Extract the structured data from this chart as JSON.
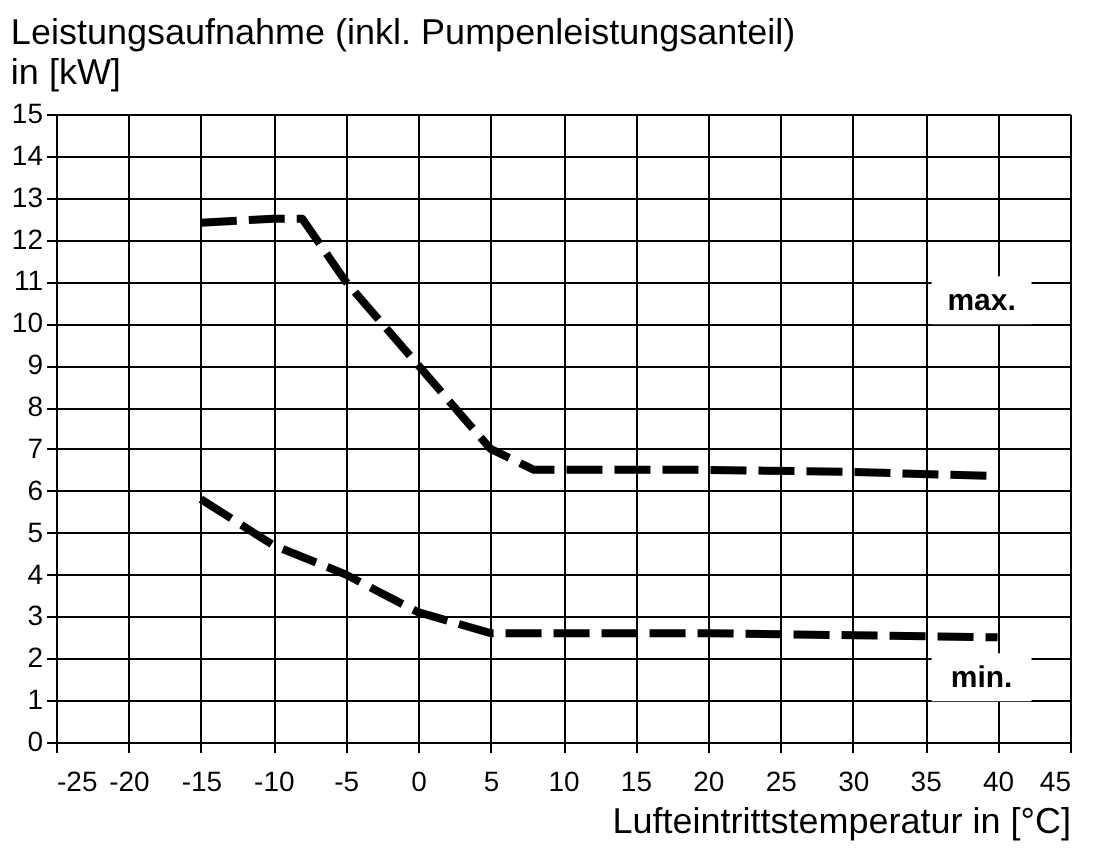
{
  "chart_data": {
    "type": "line",
    "title": "Leistungsaufnahme (inkl. Pumpenleistungsanteil) in [kW]",
    "xlabel": "Lufteintrittstemperatur in [°C]",
    "series": [
      {
        "color": "#000000",
        "x": [
          -15,
          -10,
          -8,
          -5,
          0,
          5,
          8,
          10,
          20,
          30,
          40
        ],
        "values": [
          12.4,
          12.5,
          12.5,
          11,
          9,
          7,
          6.5,
          6.5,
          6.5,
          6.45,
          6.35
        ]
      },
      {
        "color": "#000000",
        "x": [
          -15,
          -10,
          -5,
          0,
          5,
          10,
          20,
          30,
          40
        ],
        "values": [
          5.8,
          4.7,
          4,
          3.1,
          2.6,
          2.6,
          2.6,
          2.55,
          2.5
        ]
      }
    ],
    "annotations": [
      "max.",
      "min."
    ],
    "xlim": [
      -25,
      45
    ],
    "xticks": [
      -25,
      -20,
      -15,
      -10,
      -5,
      0,
      5,
      10,
      15,
      20,
      25,
      30,
      35,
      40,
      45
    ],
    "ylim": [
      0,
      15
    ],
    "yticks": [
      0,
      1,
      2,
      3,
      4,
      5,
      6,
      7,
      8,
      9,
      10,
      11,
      12,
      13,
      14,
      15
    ],
    "grid": true,
    "line_style": "dashed",
    "marker": "none"
  }
}
